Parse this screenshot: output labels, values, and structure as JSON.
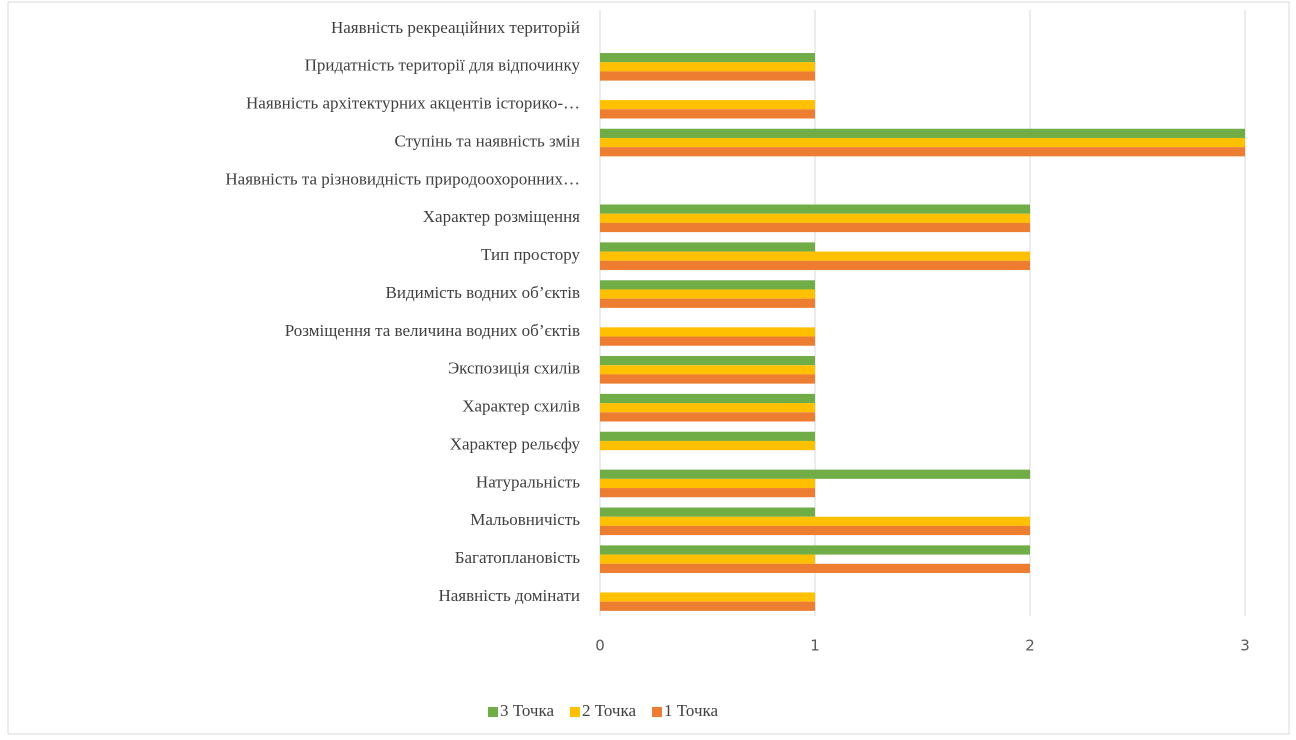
{
  "chart_data": {
    "type": "bar",
    "orientation": "horizontal",
    "categories": [
      "Наявність рекреаційних територій",
      "Придатність території для відпочинку",
      "Наявність архітектурних акцентів історико-…",
      "Ступінь та наявність змін",
      "Наявність та різновидність природоохоронних…",
      "Характер розміщення",
      "Тип простору",
      "Видимість водних об’єктів",
      "Розміщення та величина водних об’єктів",
      "Экспозиція схилів",
      "Характер схилів",
      "Характер рельєфу",
      "Натуральність",
      "Мальовничість",
      "Багатоплановість",
      "Наявність домінати"
    ],
    "series": [
      {
        "name": "3 Точка",
        "color": "#70ad47",
        "values": [
          0,
          1,
          0,
          3,
          0,
          2,
          1,
          1,
          0,
          1,
          1,
          1,
          2,
          1,
          2,
          0
        ]
      },
      {
        "name": "2 Точка",
        "color": "#ffc000",
        "values": [
          0,
          1,
          1,
          3,
          0,
          2,
          2,
          1,
          1,
          1,
          1,
          1,
          1,
          2,
          1,
          1
        ]
      },
      {
        "name": "1 Точка",
        "color": "#ed7d31",
        "values": [
          0,
          1,
          1,
          3,
          0,
          2,
          2,
          1,
          1,
          1,
          1,
          0,
          1,
          2,
          2,
          1
        ]
      }
    ],
    "xlim": [
      0,
      3
    ],
    "xticks": [
      0,
      1,
      2,
      3
    ],
    "grid": true,
    "legend": "bottom"
  }
}
